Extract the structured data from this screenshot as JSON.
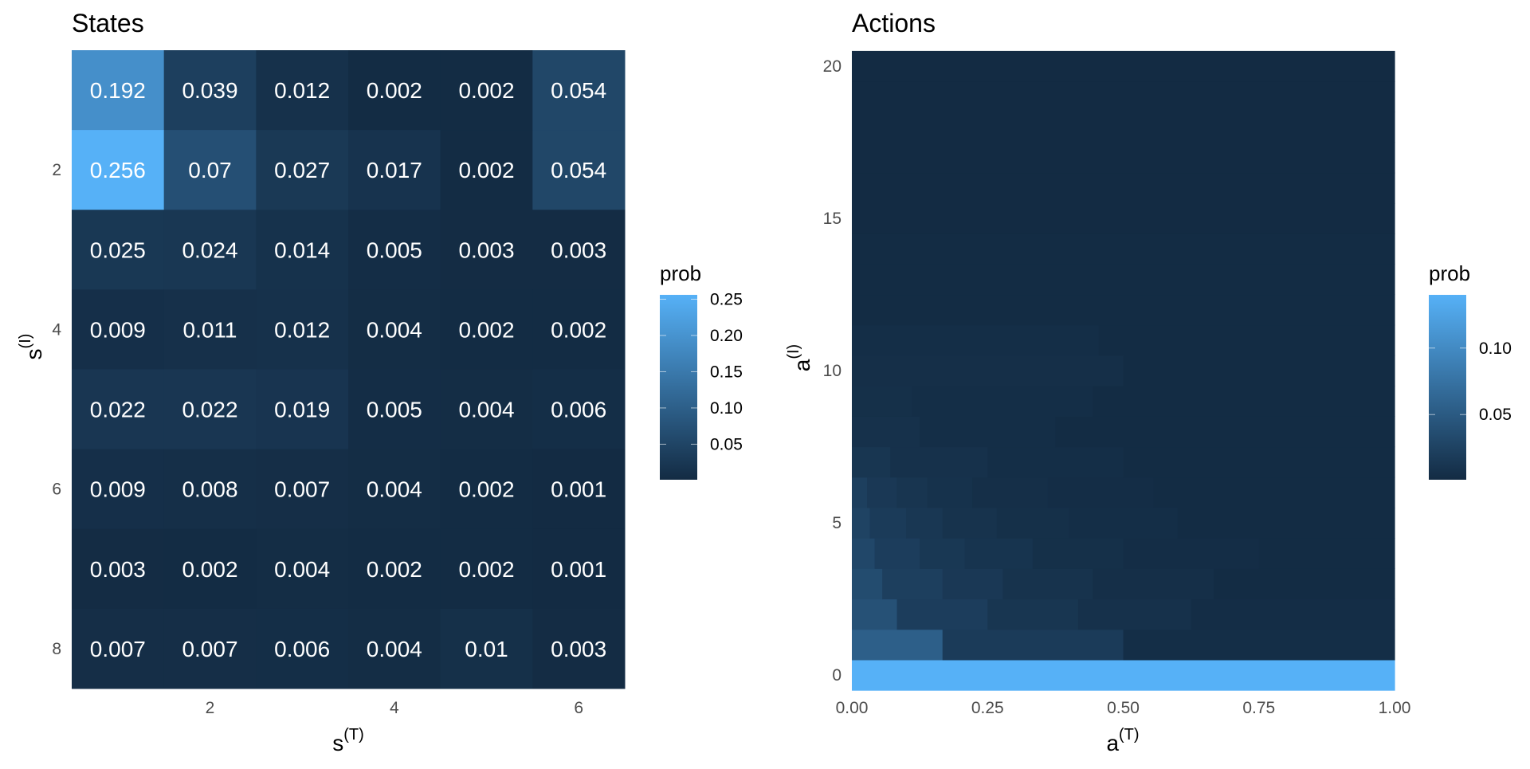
{
  "chart_data": [
    {
      "type": "heatmap",
      "title": "States",
      "xlabel_base": "s",
      "xlabel_sup": "(T)",
      "ylabel_base": "s",
      "ylabel_sup": "(I)",
      "x_categories": [
        1,
        2,
        3,
        4,
        5,
        6
      ],
      "y_categories": [
        1,
        2,
        3,
        4,
        5,
        6,
        7,
        8
      ],
      "x_ticks": [
        2,
        4,
        6
      ],
      "y_ticks": [
        2,
        4,
        6,
        8
      ],
      "y_order": "top-to-bottom",
      "values": [
        [
          "0.192",
          "0.039",
          "0.012",
          "0.002",
          "0.002",
          "0.054"
        ],
        [
          "0.256",
          "0.07",
          "0.027",
          "0.017",
          "0.002",
          "0.054"
        ],
        [
          "0.025",
          "0.024",
          "0.014",
          "0.005",
          "0.003",
          "0.003"
        ],
        [
          "0.009",
          "0.011",
          "0.012",
          "0.004",
          "0.002",
          "0.002"
        ],
        [
          "0.022",
          "0.022",
          "0.019",
          "0.005",
          "0.004",
          "0.006"
        ],
        [
          "0.009",
          "0.008",
          "0.007",
          "0.004",
          "0.002",
          "0.001"
        ],
        [
          "0.003",
          "0.002",
          "0.004",
          "0.002",
          "0.002",
          "0.001"
        ],
        [
          "0.007",
          "0.007",
          "0.006",
          "0.004",
          "0.01",
          "0.003"
        ]
      ],
      "legend": {
        "title": "prob",
        "ticks": [
          "0.25",
          "0.20",
          "0.15",
          "0.10",
          "0.05"
        ],
        "min": 0.001,
        "max": 0.256,
        "placement": "right"
      },
      "colors": {
        "low": "#132b43",
        "high": "#56b1f7"
      }
    },
    {
      "type": "heatmap",
      "title": "Actions",
      "xlabel_base": "a",
      "xlabel_sup": "(T)",
      "ylabel_base": "a",
      "ylabel_sup": "(I)",
      "xlim": [
        0,
        1
      ],
      "ylim": [
        0,
        20
      ],
      "x_ticks": [
        "0.00",
        "0.25",
        "0.50",
        "0.75",
        "1.00"
      ],
      "y_ticks": [
        "0",
        "5",
        "10",
        "15",
        "20"
      ],
      "rows": [
        {
          "a_I": 0,
          "segments": [
            {
              "x0": 0,
              "x1": 1,
              "v": 0.14
            }
          ]
        },
        {
          "a_I": 1,
          "segments": [
            {
              "x0": 0,
              "x1": 0.167,
              "v": 0.055
            },
            {
              "x0": 0.167,
              "x1": 0.5,
              "v": 0.018
            },
            {
              "x0": 0.5,
              "x1": 1,
              "v": 0.004
            }
          ]
        },
        {
          "a_I": 2,
          "segments": [
            {
              "x0": 0,
              "x1": 0.083,
              "v": 0.04
            },
            {
              "x0": 0.083,
              "x1": 0.25,
              "v": 0.02
            },
            {
              "x0": 0.25,
              "x1": 0.417,
              "v": 0.012
            },
            {
              "x0": 0.417,
              "x1": 0.625,
              "v": 0.007
            },
            {
              "x0": 0.625,
              "x1": 1,
              "v": 0.003
            }
          ]
        },
        {
          "a_I": 3,
          "segments": [
            {
              "x0": 0,
              "x1": 0.056,
              "v": 0.035
            },
            {
              "x0": 0.056,
              "x1": 0.167,
              "v": 0.022
            },
            {
              "x0": 0.167,
              "x1": 0.278,
              "v": 0.015
            },
            {
              "x0": 0.278,
              "x1": 0.444,
              "v": 0.009
            },
            {
              "x0": 0.444,
              "x1": 0.667,
              "v": 0.005
            },
            {
              "x0": 0.667,
              "x1": 1,
              "v": 0.002
            }
          ]
        },
        {
          "a_I": 4,
          "segments": [
            {
              "x0": 0,
              "x1": 0.042,
              "v": 0.03
            },
            {
              "x0": 0.042,
              "x1": 0.125,
              "v": 0.02
            },
            {
              "x0": 0.125,
              "x1": 0.208,
              "v": 0.014
            },
            {
              "x0": 0.208,
              "x1": 0.333,
              "v": 0.01
            },
            {
              "x0": 0.333,
              "x1": 0.5,
              "v": 0.006
            },
            {
              "x0": 0.5,
              "x1": 0.75,
              "v": 0.003
            },
            {
              "x0": 0.75,
              "x1": 1,
              "v": 0.002
            }
          ]
        },
        {
          "a_I": 5,
          "segments": [
            {
              "x0": 0,
              "x1": 0.033,
              "v": 0.026
            },
            {
              "x0": 0.033,
              "x1": 0.1,
              "v": 0.018
            },
            {
              "x0": 0.1,
              "x1": 0.167,
              "v": 0.013
            },
            {
              "x0": 0.167,
              "x1": 0.267,
              "v": 0.009
            },
            {
              "x0": 0.267,
              "x1": 0.4,
              "v": 0.006
            },
            {
              "x0": 0.4,
              "x1": 0.6,
              "v": 0.004
            },
            {
              "x0": 0.6,
              "x1": 1,
              "v": 0.002
            }
          ]
        },
        {
          "a_I": 6,
          "segments": [
            {
              "x0": 0,
              "x1": 0.028,
              "v": 0.022
            },
            {
              "x0": 0.028,
              "x1": 0.083,
              "v": 0.015
            },
            {
              "x0": 0.083,
              "x1": 0.139,
              "v": 0.011
            },
            {
              "x0": 0.139,
              "x1": 0.222,
              "v": 0.008
            },
            {
              "x0": 0.222,
              "x1": 0.361,
              "v": 0.005
            },
            {
              "x0": 0.361,
              "x1": 0.556,
              "v": 0.003
            },
            {
              "x0": 0.556,
              "x1": 1,
              "v": 0.002
            }
          ]
        },
        {
          "a_I": 7,
          "segments": [
            {
              "x0": 0,
              "x1": 0.071,
              "v": 0.012
            },
            {
              "x0": 0.071,
              "x1": 0.25,
              "v": 0.007
            },
            {
              "x0": 0.25,
              "x1": 0.5,
              "v": 0.004
            },
            {
              "x0": 0.5,
              "x1": 1,
              "v": 0.002
            }
          ]
        },
        {
          "a_I": 8,
          "segments": [
            {
              "x0": 0,
              "x1": 0.125,
              "v": 0.007
            },
            {
              "x0": 0.125,
              "x1": 0.375,
              "v": 0.004
            },
            {
              "x0": 0.375,
              "x1": 1,
              "v": 0.002
            }
          ]
        },
        {
          "a_I": 9,
          "segments": [
            {
              "x0": 0,
              "x1": 0.111,
              "v": 0.006
            },
            {
              "x0": 0.111,
              "x1": 0.444,
              "v": 0.004
            },
            {
              "x0": 0.444,
              "x1": 1,
              "v": 0.002
            }
          ]
        },
        {
          "a_I": 10,
          "segments": [
            {
              "x0": 0,
              "x1": 0.5,
              "v": 0.005
            },
            {
              "x0": 0.5,
              "x1": 1,
              "v": 0.002
            }
          ]
        },
        {
          "a_I": 11,
          "segments": [
            {
              "x0": 0,
              "x1": 0.455,
              "v": 0.004
            },
            {
              "x0": 0.455,
              "x1": 1,
              "v": 0.002
            }
          ]
        },
        {
          "a_I": 12,
          "segments": [
            {
              "x0": 0,
              "x1": 1,
              "v": 0.002
            }
          ]
        },
        {
          "a_I": 13,
          "segments": [
            {
              "x0": 0,
              "x1": 1,
              "v": 0.002
            }
          ]
        },
        {
          "a_I": 14,
          "segments": [
            {
              "x0": 0,
              "x1": 1,
              "v": 0.002
            }
          ]
        },
        {
          "a_I": 15,
          "segments": [
            {
              "x0": 0,
              "x1": 1,
              "v": 0.001
            }
          ]
        },
        {
          "a_I": 16,
          "segments": [
            {
              "x0": 0,
              "x1": 1,
              "v": 0.001
            }
          ]
        },
        {
          "a_I": 17,
          "segments": [
            {
              "x0": 0,
              "x1": 1,
              "v": 0.001
            }
          ]
        },
        {
          "a_I": 18,
          "segments": [
            {
              "x0": 0,
              "x1": 1,
              "v": 0.001
            }
          ]
        },
        {
          "a_I": 19,
          "segments": [
            {
              "x0": 0,
              "x1": 1,
              "v": 0.001
            }
          ]
        },
        {
          "a_I": 20,
          "segments": [
            {
              "x0": 0,
              "x1": 1,
              "v": 0.001
            }
          ]
        }
      ],
      "legend": {
        "title": "prob",
        "ticks": [
          "0.10",
          "0.05"
        ],
        "min": 0.001,
        "max": 0.14,
        "placement": "right"
      },
      "colors": {
        "low": "#132b43",
        "high": "#56b1f7"
      }
    }
  ]
}
